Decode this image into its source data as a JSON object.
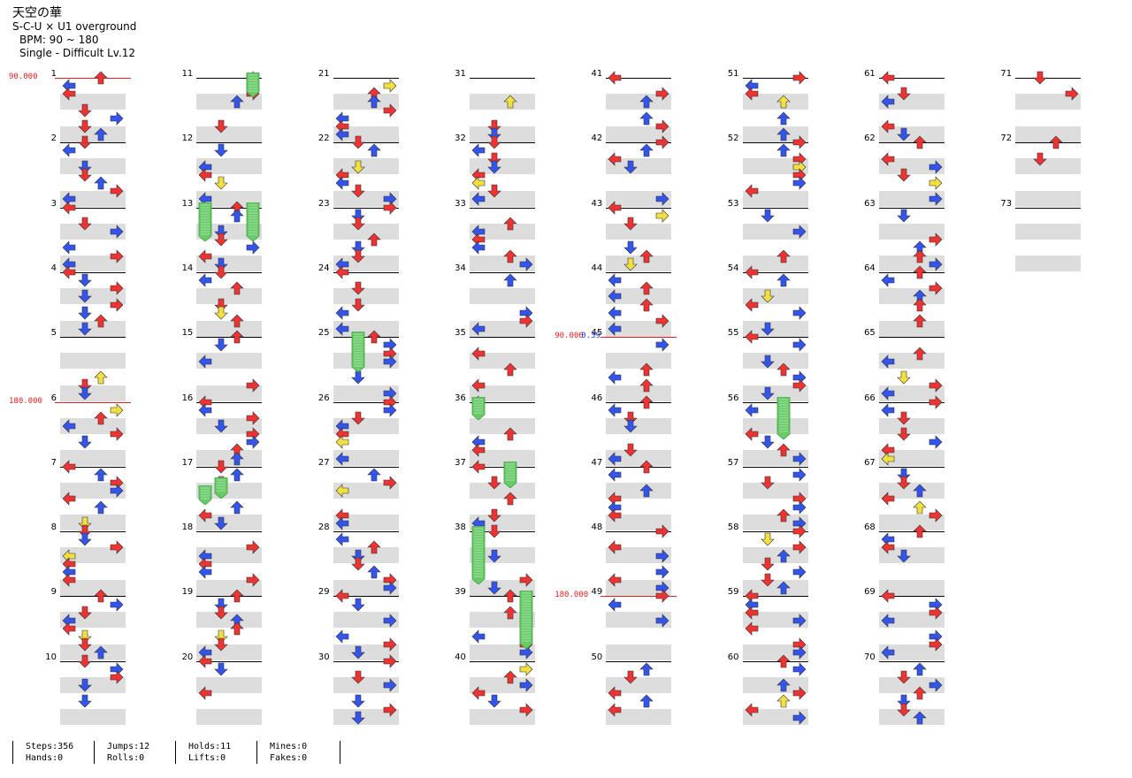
{
  "header": {
    "title": "天空の華",
    "artist": "S-C-U × U1 overground",
    "bpm": "BPM: 90 ~ 180",
    "difficulty": "Single - Difficult Lv.12"
  },
  "measures": [
    "1",
    "2",
    "3",
    "4",
    "5",
    "6",
    "7",
    "8",
    "9",
    "10",
    "11",
    "12",
    "13",
    "14",
    "15",
    "16",
    "17",
    "18",
    "19",
    "20",
    "21",
    "22",
    "23",
    "24",
    "25",
    "26",
    "27",
    "28",
    "29",
    "30",
    "31",
    "32",
    "33",
    "34",
    "35",
    "36",
    "37",
    "38",
    "39",
    "40",
    "41",
    "42",
    "43",
    "44",
    "45",
    "46",
    "47",
    "48",
    "49",
    "50",
    "51",
    "52",
    "53",
    "54",
    "55",
    "56",
    "57",
    "58",
    "59",
    "60",
    "61",
    "62",
    "63",
    "64",
    "65",
    "66",
    "67",
    "68",
    "69",
    "70",
    "71",
    "72",
    "73"
  ],
  "bpm_changes": [
    {
      "measure": 1,
      "label": "90.000",
      "color": "#e02020"
    },
    {
      "measure": 6,
      "label": "180.000",
      "color": "#e02020"
    },
    {
      "measure": 45,
      "label": "90.000",
      "color": "#e02020"
    },
    {
      "measure": 45,
      "label": "0.39",
      "color": "#2040e0"
    },
    {
      "measure": 49,
      "label": "180.000",
      "color": "#e02020"
    }
  ],
  "colors": {
    "quarter": "#ee3333",
    "eighth": "#3355ee",
    "sixteenth": "#f2e040",
    "twelfth": "#f08a30",
    "hold": "#66cc66",
    "band": "#dddddd"
  },
  "stats": {
    "steps": "Steps:356",
    "hands": "Hands:0",
    "jumps": "Jumps:12",
    "rolls": "Rolls:0",
    "holds": "Holds:11",
    "lifts": "Lifts:0",
    "mines": "Mines:0",
    "fakes": "Fakes:0"
  }
}
